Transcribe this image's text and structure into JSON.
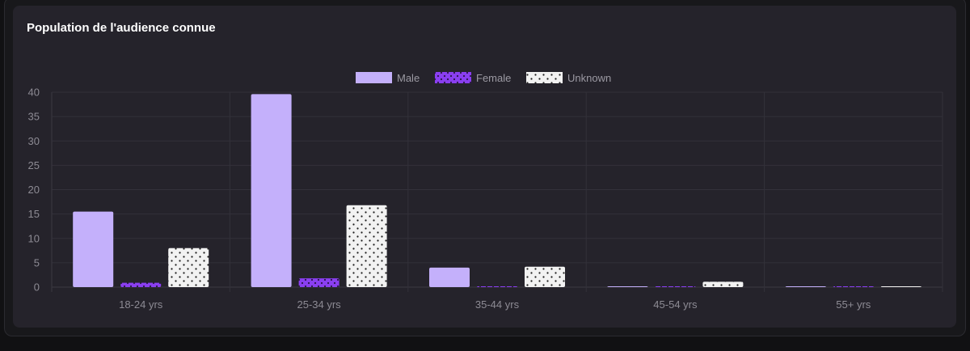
{
  "card": {
    "title": "Population de l'audience connue"
  },
  "colors": {
    "male": "#c4b0fb",
    "female": "#8a3ff0",
    "unknown": "#f2f2f2",
    "grid": "#33313a",
    "axis_text": "#8d8b94"
  },
  "chart_data": {
    "type": "bar",
    "title": "Population de l'audience connue",
    "categories": [
      "18-24 yrs",
      "25-34 yrs",
      "35-44 yrs",
      "45-54 yrs",
      "55+ yrs"
    ],
    "series": [
      {
        "name": "Male",
        "key": "male",
        "values": [
          15.5,
          39.6,
          4.0,
          0.05,
          0.05
        ]
      },
      {
        "name": "Female",
        "key": "female",
        "values": [
          0.9,
          1.8,
          0.1,
          0.05,
          0.05
        ]
      },
      {
        "name": "Unknown",
        "key": "unknown",
        "values": [
          8.0,
          16.8,
          4.2,
          1.1,
          0.1
        ]
      }
    ],
    "ylim": [
      0,
      40
    ],
    "yticks": [
      0,
      5,
      10,
      15,
      20,
      25,
      30,
      35,
      40
    ],
    "xlabel": "",
    "ylabel": "",
    "grid": true,
    "legend_position": "top-center"
  }
}
